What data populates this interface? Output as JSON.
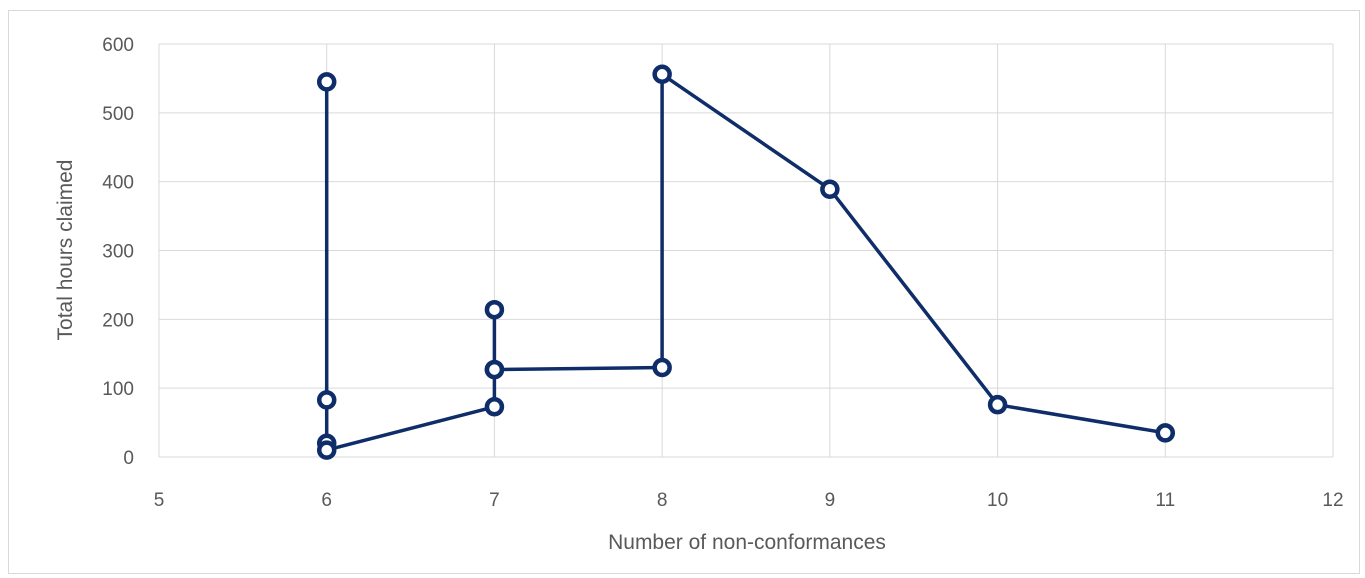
{
  "chart_data": {
    "type": "scatter",
    "title": "",
    "xlabel": "Number of non-conformances",
    "ylabel": "Total hours claimed",
    "xlim": [
      5,
      12
    ],
    "ylim": [
      0,
      600
    ],
    "x_ticks": [
      "5",
      "6",
      "7",
      "8",
      "9",
      "10",
      "11",
      "12"
    ],
    "y_ticks": [
      "0",
      "100",
      "200",
      "300",
      "400",
      "500",
      "600"
    ],
    "grid": true,
    "legend": "none",
    "series": [
      {
        "color": "#0f2d69",
        "points": [
          {
            "x": 6,
            "y": 545
          },
          {
            "x": 6,
            "y": 83
          },
          {
            "x": 6,
            "y": 20
          },
          {
            "x": 6,
            "y": 10
          },
          {
            "x": 7,
            "y": 73
          },
          {
            "x": 7,
            "y": 127
          },
          {
            "x": 7,
            "y": 214
          },
          {
            "x": 7,
            "y": 127
          },
          {
            "x": 8,
            "y": 130
          },
          {
            "x": 8,
            "y": 556
          },
          {
            "x": 9,
            "y": 389
          },
          {
            "x": 10,
            "y": 76
          },
          {
            "x": 11,
            "y": 35
          }
        ]
      }
    ]
  }
}
